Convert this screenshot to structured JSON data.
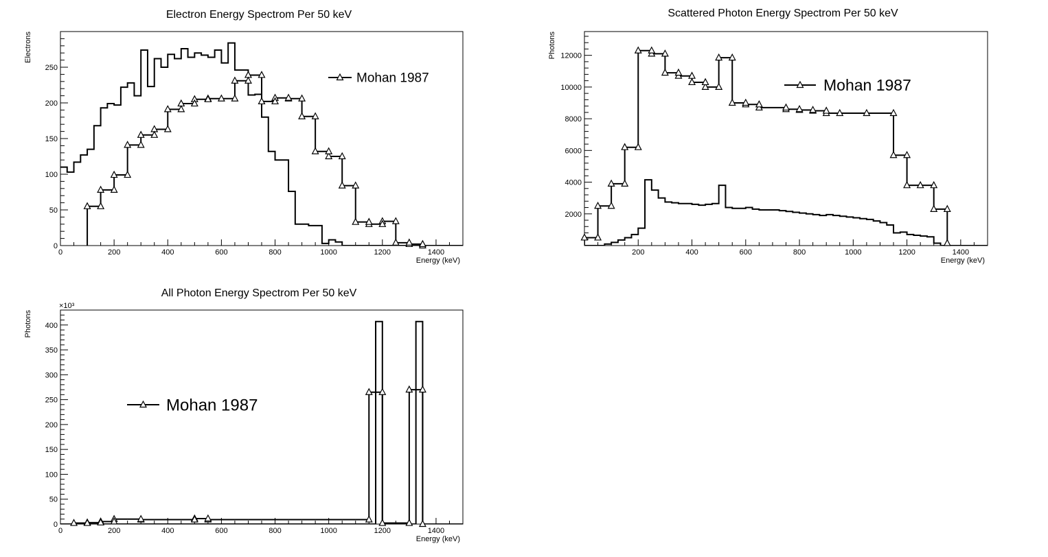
{
  "chart_data": [
    {
      "type": "line",
      "title": "Electron Energy Spectrom Per 50 keV",
      "xlabel": "Energy (keV)",
      "ylabel": "Electrons",
      "xlim": [
        0,
        1500
      ],
      "ylim": [
        0,
        300
      ],
      "xticks": [
        0,
        200,
        400,
        600,
        800,
        1000,
        1200,
        1400
      ],
      "yticks": [
        0,
        50,
        100,
        150,
        200,
        250
      ],
      "legend": {
        "label": "Mohan 1987",
        "position": "top-right"
      },
      "series": [
        {
          "style": "histogram",
          "bin_width": 25,
          "x_start": 0,
          "values": [
            110,
            103,
            117,
            127,
            135,
            168,
            193,
            199,
            197,
            222,
            228,
            210,
            274,
            223,
            262,
            250,
            268,
            262,
            276,
            264,
            270,
            267,
            264,
            274,
            256,
            284,
            246,
            246,
            211,
            212,
            180,
            132,
            120,
            120,
            76,
            30,
            30,
            28,
            28,
            3,
            8,
            5,
            0,
            0,
            0,
            0,
            0,
            0,
            0,
            0,
            0,
            0,
            0,
            0,
            0,
            0,
            0,
            0,
            0,
            0
          ]
        },
        {
          "name": "Mohan 1987",
          "style": "step-markers",
          "x": [
            100,
            150,
            200,
            250,
            300,
            350,
            400,
            450,
            500,
            550,
            600,
            650,
            700,
            750,
            800,
            850,
            900,
            950,
            1000,
            1050,
            1100,
            1150,
            1200,
            1250,
            1300,
            1350
          ],
          "values": [
            55,
            78,
            99,
            141,
            155,
            163,
            191,
            199,
            205,
            206,
            206,
            231,
            239,
            202,
            207,
            206,
            181,
            132,
            125,
            84,
            33,
            30,
            34,
            4,
            2,
            0
          ]
        }
      ]
    },
    {
      "type": "line",
      "title": "Scattered Photon Energy Spectrom Per 50 keV",
      "xlabel": "Energy (keV)",
      "ylabel": "Photons",
      "xlim": [
        0,
        1500
      ],
      "ylim": [
        0,
        13500
      ],
      "xticks": [
        200,
        400,
        600,
        800,
        1000,
        1200,
        1400
      ],
      "yticks": [
        2000,
        4000,
        6000,
        8000,
        10000,
        12000
      ],
      "legend": {
        "label": "Mohan 1987",
        "position": "top-center"
      },
      "series": [
        {
          "style": "histogram",
          "bin_width": 25,
          "x_start": 0,
          "values": [
            0,
            0,
            0,
            100,
            200,
            350,
            500,
            700,
            1100,
            4150,
            3500,
            3000,
            2750,
            2700,
            2650,
            2650,
            2600,
            2550,
            2600,
            2650,
            3800,
            2400,
            2350,
            2350,
            2400,
            2300,
            2250,
            2250,
            2250,
            2200,
            2150,
            2100,
            2050,
            2000,
            1950,
            1900,
            1950,
            1900,
            1850,
            1800,
            1750,
            1700,
            1650,
            1550,
            1450,
            1300,
            800,
            850,
            700,
            650,
            600,
            550,
            150,
            0,
            0,
            0,
            0,
            0,
            0,
            0
          ]
        },
        {
          "name": "Mohan 1987",
          "style": "step-markers",
          "x": [
            0,
            50,
            100,
            150,
            200,
            250,
            300,
            350,
            400,
            450,
            500,
            550,
            600,
            650,
            750,
            800,
            850,
            900,
            950,
            1050,
            1150,
            1200,
            1250,
            1300,
            1350
          ],
          "values": [
            500,
            2500,
            3900,
            6200,
            12300,
            12100,
            10900,
            10700,
            10300,
            10000,
            11850,
            9000,
            8900,
            8700,
            8600,
            8550,
            8500,
            8350,
            8350,
            8350,
            5700,
            3800,
            3800,
            2300,
            150
          ]
        }
      ]
    },
    {
      "type": "line",
      "title": "All Photon Energy Spectrom Per 50 keV",
      "xlabel": "Energy (keV)",
      "ylabel": "Photons",
      "y_multiplier": "×10³",
      "xlim": [
        0,
        1500
      ],
      "ylim": [
        0,
        430
      ],
      "xticks": [
        0,
        200,
        400,
        600,
        800,
        1000,
        1200,
        1400
      ],
      "yticks": [
        0,
        50,
        100,
        150,
        200,
        250,
        300,
        350,
        400
      ],
      "legend": {
        "label": "Mohan 1987",
        "position": "middle-left"
      },
      "series": [
        {
          "style": "histogram",
          "bin_width": 25,
          "x_start": 0,
          "values": [
            0,
            0,
            0,
            0,
            0,
            0,
            0,
            0,
            0,
            0,
            0,
            0,
            0,
            0,
            0,
            0,
            0,
            0,
            0,
            0,
            0,
            0,
            0,
            0,
            0,
            0,
            0,
            0,
            0,
            0,
            0,
            0,
            0,
            0,
            0,
            0,
            0,
            0,
            0,
            0,
            0,
            0,
            0,
            0,
            0,
            0,
            0,
            407,
            0,
            0,
            0,
            0,
            0,
            407,
            0,
            0,
            0,
            0,
            0,
            0
          ]
        },
        {
          "name": "Mohan 1987",
          "style": "step-markers",
          "x": [
            50,
            100,
            150,
            200,
            300,
            500,
            550,
            1150,
            1200,
            1300,
            1350
          ],
          "values": [
            2,
            3,
            5,
            10,
            9,
            11,
            9,
            265,
            2,
            270,
            0
          ]
        }
      ]
    }
  ]
}
